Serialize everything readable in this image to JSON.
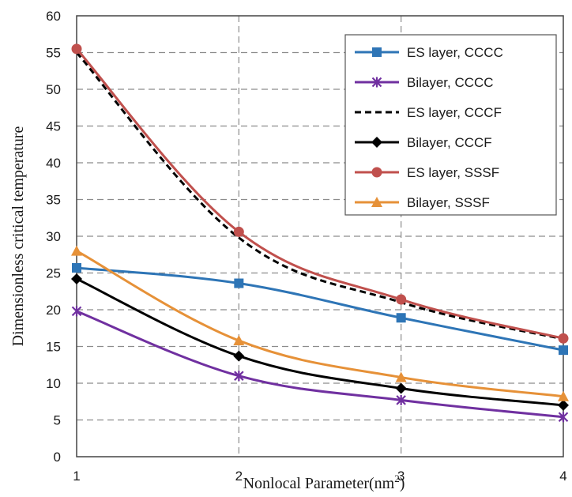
{
  "chart_data": {
    "type": "line",
    "xlabel": "Nonlocal Parameter(nm",
    "xlabel_sup": "2",
    "xlabel_end": ")",
    "ylabel": "Dimensionless critical temperature",
    "x": [
      1,
      2,
      3,
      4
    ],
    "xlim": [
      1,
      4
    ],
    "ylim": [
      0,
      60
    ],
    "yticks": [
      0,
      5,
      10,
      15,
      20,
      25,
      30,
      35,
      40,
      45,
      50,
      55,
      60
    ],
    "xticks": [
      1,
      2,
      3,
      4
    ],
    "grid": true,
    "legend_position": "top-right",
    "series": [
      {
        "name": "ES layer, CCCC",
        "values": [
          25.7,
          23.6,
          18.9,
          14.5
        ],
        "color": "#2e75b6",
        "marker": "square",
        "dash": "solid"
      },
      {
        "name": "Bilayer, CCCC",
        "values": [
          19.8,
          11.0,
          7.7,
          5.4
        ],
        "color": "#7030a0",
        "marker": "star",
        "dash": "solid"
      },
      {
        "name": "ES layer, CCCF",
        "values": [
          55.0,
          29.8,
          21.0,
          16.0
        ],
        "color": "#000000",
        "marker": "none",
        "dash": "dashed"
      },
      {
        "name": "Bilayer, CCCF",
        "values": [
          24.2,
          13.7,
          9.3,
          7.0
        ],
        "color": "#000000",
        "marker": "diamond",
        "dash": "solid"
      },
      {
        "name": "ES layer, SSSF",
        "values": [
          55.5,
          30.6,
          21.4,
          16.1
        ],
        "color": "#c0504d",
        "marker": "circle",
        "dash": "solid"
      },
      {
        "name": "Bilayer, SSSF",
        "values": [
          28.0,
          15.8,
          10.8,
          8.2
        ],
        "color": "#e69138",
        "marker": "triangle",
        "dash": "solid"
      }
    ]
  }
}
